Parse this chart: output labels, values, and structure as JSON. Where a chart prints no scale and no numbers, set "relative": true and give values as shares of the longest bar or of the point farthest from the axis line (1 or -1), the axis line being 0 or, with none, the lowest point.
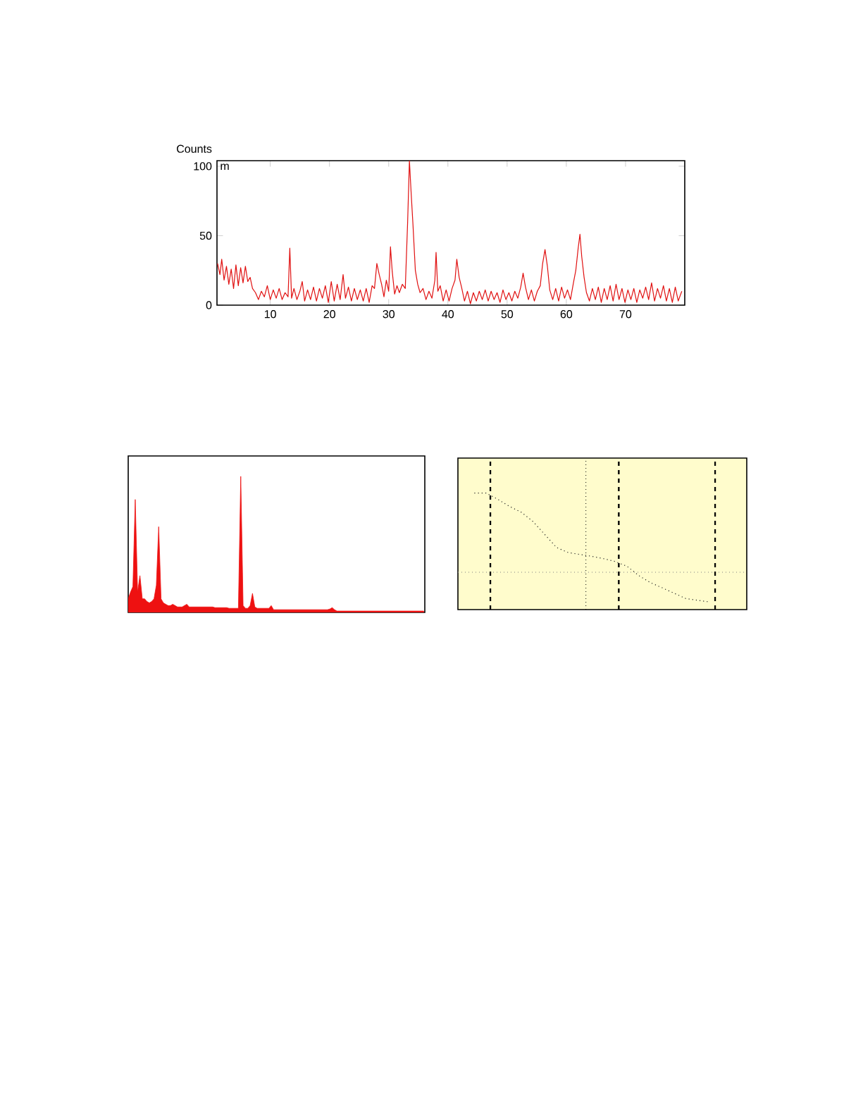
{
  "chart_data": [
    {
      "type": "line",
      "ylabel": "Counts",
      "annotations": [
        "m"
      ],
      "xlim": [
        1,
        80
      ],
      "ylim": [
        0,
        104
      ],
      "xticks": [
        10,
        20,
        30,
        40,
        50,
        60,
        70
      ],
      "yticks": [
        0,
        50,
        100
      ],
      "grid": false,
      "series": [
        {
          "color": "#e01010",
          "x": [
            1.1,
            1.5,
            1.8,
            2.2,
            2.6,
            3,
            3.4,
            3.8,
            4.2,
            4.6,
            5,
            5.4,
            5.8,
            6.2,
            6.6,
            7,
            7.5,
            8,
            8.5,
            9,
            9.5,
            10,
            10.5,
            11,
            11.5,
            12,
            12.5,
            13,
            13.3,
            13.6,
            14,
            14.5,
            15,
            15.4,
            15.8,
            16.3,
            16.8,
            17.3,
            17.8,
            18.3,
            18.8,
            19.3,
            19.8,
            20.3,
            20.8,
            21.3,
            21.8,
            22.3,
            22.7,
            23.2,
            23.7,
            24.2,
            24.7,
            25.2,
            25.7,
            26.2,
            26.7,
            27.2,
            27.6,
            28,
            28.4,
            28.8,
            29.2,
            29.6,
            30,
            30.3,
            30.6,
            31,
            31.4,
            31.8,
            32.3,
            32.8,
            33.2,
            33.5,
            33.8,
            34.1,
            34.5,
            34.9,
            35.3,
            35.8,
            36.3,
            36.8,
            37.3,
            37.8,
            38,
            38.3,
            38.7,
            39.2,
            39.7,
            40.2,
            40.7,
            41.2,
            41.5,
            41.9,
            42.3,
            42.8,
            43.3,
            43.8,
            44.3,
            44.8,
            45.3,
            45.8,
            46.3,
            46.8,
            47.3,
            47.8,
            48.3,
            48.8,
            49.3,
            49.8,
            50.3,
            50.8,
            51.3,
            51.8,
            52.3,
            52.7,
            53.1,
            53.6,
            54.1,
            54.6,
            55.1,
            55.6,
            56,
            56.4,
            56.8,
            57.2,
            57.7,
            58.2,
            58.7,
            59.2,
            59.7,
            60.2,
            60.7,
            61.2,
            61.6,
            62,
            62.3,
            62.6,
            63,
            63.4,
            63.9,
            64.4,
            64.9,
            65.4,
            65.9,
            66.4,
            66.9,
            67.4,
            67.9,
            68.4,
            68.9,
            69.4,
            69.9,
            70.4,
            70.9,
            71.4,
            71.9,
            72.4,
            72.9,
            73.4,
            73.9,
            74.4,
            74.9,
            75.4,
            75.9,
            76.4,
            76.9,
            77.4,
            77.9,
            78.4,
            78.9,
            79.5
          ],
          "values": [
            30,
            22,
            33,
            18,
            28,
            15,
            26,
            12,
            29,
            14,
            27,
            16,
            28,
            17,
            20,
            12,
            9,
            4,
            10,
            6,
            14,
            4,
            11,
            5,
            12,
            4,
            9,
            6,
            41,
            5,
            12,
            4,
            10,
            17,
            3,
            11,
            4,
            13,
            3,
            12,
            5,
            14,
            2,
            17,
            3,
            15,
            4,
            22,
            5,
            13,
            3,
            12,
            4,
            11,
            3,
            12,
            2,
            14,
            12,
            30,
            22,
            15,
            6,
            18,
            10,
            42,
            24,
            8,
            14,
            9,
            15,
            12,
            60,
            104,
            80,
            58,
            25,
            15,
            9,
            12,
            4,
            10,
            5,
            18,
            38,
            10,
            14,
            3,
            11,
            3,
            12,
            18,
            33,
            20,
            13,
            3,
            10,
            1,
            9,
            3,
            10,
            4,
            11,
            3,
            10,
            4,
            9,
            2,
            11,
            4,
            9,
            3,
            10,
            5,
            13,
            23,
            13,
            4,
            11,
            3,
            10,
            14,
            30,
            40,
            28,
            11,
            4,
            12,
            3,
            13,
            5,
            11,
            4,
            16,
            25,
            41,
            51,
            35,
            20,
            9,
            3,
            12,
            4,
            13,
            2,
            12,
            4,
            14,
            3,
            15,
            4,
            12,
            2,
            11,
            4,
            12,
            2,
            11,
            5,
            13,
            4,
            16,
            3,
            12,
            5,
            14,
            3,
            12,
            2,
            13,
            3,
            10
          ]
        }
      ]
    },
    {
      "type": "area",
      "relative": true,
      "tick_labels": false,
      "categories": [
        null,
        null,
        null,
        null,
        null,
        null,
        null,
        null,
        null,
        null,
        null,
        null,
        null,
        null,
        null,
        null,
        null,
        null,
        null,
        null,
        null,
        null,
        null,
        null,
        null,
        null,
        null,
        null,
        null,
        null,
        null,
        null,
        null,
        null,
        null,
        null,
        null,
        null,
        null,
        null,
        null,
        null,
        null,
        null,
        null,
        null,
        null,
        null,
        null,
        null,
        null,
        null,
        null,
        null,
        null,
        null,
        null,
        null,
        null,
        null,
        null,
        null,
        null,
        null,
        null,
        null,
        null,
        null,
        null,
        null,
        null,
        null,
        null,
        null,
        null,
        null,
        null,
        null,
        null,
        null,
        null,
        null,
        null,
        null,
        null,
        null,
        null,
        null,
        null,
        null,
        null,
        null,
        null,
        null,
        null,
        null,
        null,
        null,
        null,
        null,
        null,
        null,
        null,
        null,
        null,
        null,
        null,
        null,
        null,
        null,
        null,
        null,
        null,
        null,
        null,
        null,
        null,
        null,
        null,
        null,
        null,
        null,
        null,
        null,
        null,
        null,
        null
      ],
      "series": [
        {
          "color": "#ee1111",
          "values": [
            0.1,
            0.15,
            0.19,
            0.83,
            0.15,
            0.27,
            0.1,
            0.1,
            0.08,
            0.07,
            0.08,
            0.1,
            0.2,
            0.63,
            0.1,
            0.07,
            0.06,
            0.05,
            0.05,
            0.06,
            0.05,
            0.04,
            0.04,
            0.04,
            0.05,
            0.06,
            0.04,
            0.04,
            0.04,
            0.04,
            0.04,
            0.04,
            0.04,
            0.04,
            0.04,
            0.04,
            0.04,
            0.035,
            0.035,
            0.035,
            0.035,
            0.035,
            0.035,
            0.03,
            0.03,
            0.03,
            0.03,
            0.03,
            1.0,
            0.05,
            0.03,
            0.03,
            0.05,
            0.14,
            0.04,
            0.03,
            0.03,
            0.03,
            0.03,
            0.03,
            0.03,
            0.05,
            0.02,
            0.02,
            0.02,
            0.02,
            0.02,
            0.02,
            0.02,
            0.02,
            0.02,
            0.02,
            0.02,
            0.02,
            0.02,
            0.02,
            0.02,
            0.02,
            0.02,
            0.02,
            0.02,
            0.02,
            0.02,
            0.02,
            0.02,
            0.02,
            0.025,
            0.035,
            0.02,
            0.01,
            0.01,
            0.01,
            0.01,
            0.01,
            0.01,
            0.01,
            0.01,
            0.01,
            0.01,
            0.01,
            0.01,
            0.01,
            0.01,
            0.01,
            0.01,
            0.01,
            0.01,
            0.01,
            0.01,
            0.01,
            0.01,
            0.01,
            0.01,
            0.01,
            0.01,
            0.01,
            0.01,
            0.01,
            0.01,
            0.01,
            0.01,
            0.01,
            0.01,
            0.01,
            0.01,
            0.01,
            0.01
          ]
        }
      ]
    },
    {
      "type": "line",
      "relative": true,
      "tick_labels": false,
      "line_style": "dotted",
      "categories": [
        null,
        null,
        null,
        null,
        null,
        null,
        null,
        null,
        null,
        null,
        null,
        null,
        null,
        null,
        null,
        null,
        null,
        null,
        null,
        null,
        null
      ],
      "ref_lines": [
        {
          "axis": "y",
          "value": 0.32,
          "line_style": "dotted"
        }
      ],
      "series": [
        {
          "color": "#222222",
          "values": [
            1,
            1,
            0.946,
            0.885,
            0.835,
            0.755,
            0.644,
            0.533,
            0.489,
            0.473,
            0.457,
            0.437,
            0.412,
            0.372,
            0.292,
            0.231,
            0.187,
            0.141,
            0.095,
            0.08,
            0.066
          ]
        }
      ]
    }
  ]
}
